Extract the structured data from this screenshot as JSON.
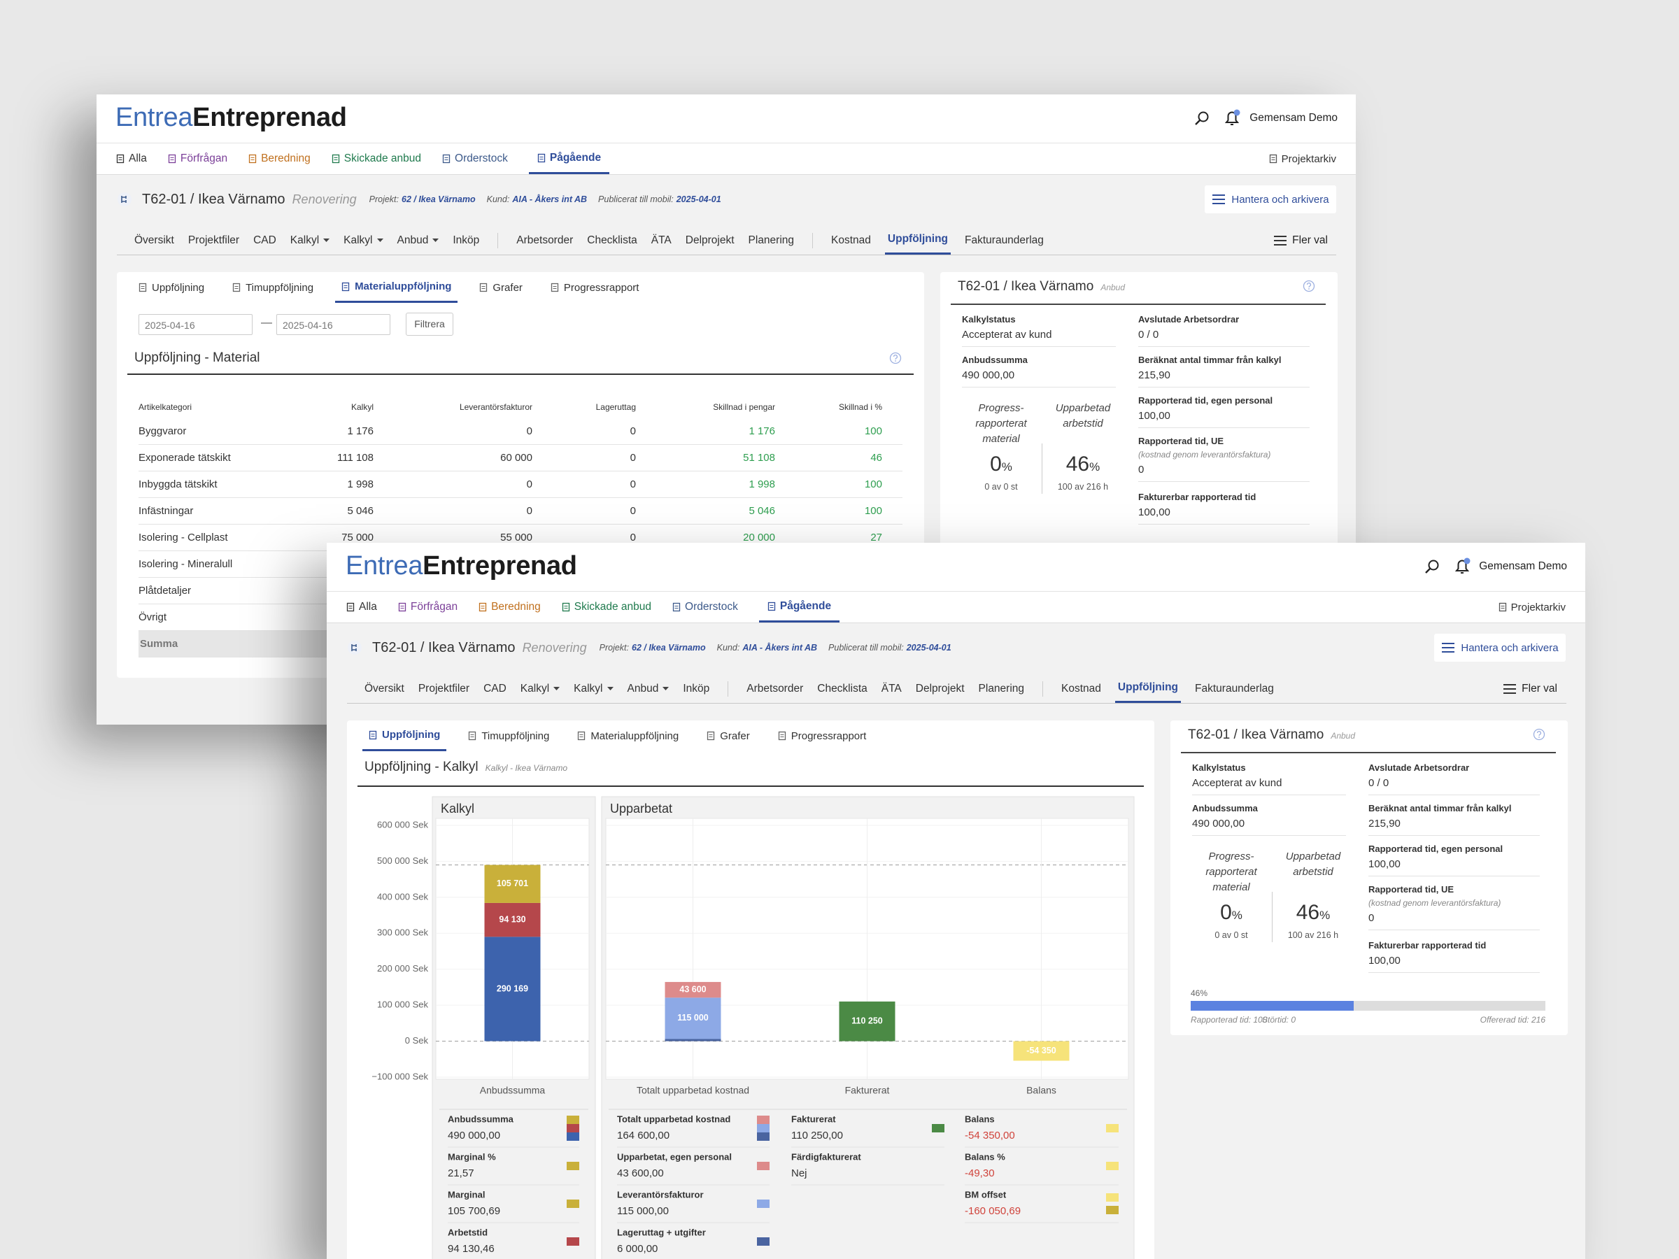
{
  "app": {
    "logo": [
      "Entrea",
      "Entreprenad"
    ],
    "user": "Gemensam Demo",
    "tabs": [
      {
        "label": "Alla",
        "color": "#333333"
      },
      {
        "label": "Förfrågan",
        "color": "#7b3f98"
      },
      {
        "label": "Beredning",
        "color": "#c0701e"
      },
      {
        "label": "Skickade anbud",
        "color": "#1f7a4d"
      },
      {
        "label": "Orderstock",
        "color": "#3d5a8a"
      },
      {
        "label": "Pågående",
        "color": "#2f4d9a",
        "active": true
      }
    ],
    "archive": "Projektarkiv",
    "project": {
      "title": "T62-01 / Ikea Värnamo",
      "status": "Renovering",
      "meta": [
        {
          "label": "Projekt:",
          "value": "62 / Ikea Värnamo"
        },
        {
          "label": "Kund:",
          "value": "AIA - Åkers int AB"
        },
        {
          "label": "Publicerat till mobil:",
          "value": "2025-04-01"
        }
      ],
      "manage": "Hantera och arkivera"
    },
    "nav": [
      [
        {
          "label": "Översikt"
        },
        {
          "label": "Projektfiler"
        },
        {
          "label": "CAD"
        },
        {
          "label": "Kalkyl",
          "dropdown": true
        },
        {
          "label": "Kalkyl",
          "dropdown": true
        },
        {
          "label": "Anbud",
          "dropdown": true
        },
        {
          "label": "Inköp"
        }
      ],
      [
        {
          "label": "Arbetsorder"
        },
        {
          "label": "Checklista"
        },
        {
          "label": "ÄTA"
        },
        {
          "label": "Delprojekt"
        },
        {
          "label": "Planering"
        }
      ],
      [
        {
          "label": "Kostnad"
        },
        {
          "label": "Uppföljning",
          "active": true
        },
        {
          "label": "Fakturaunderlag"
        }
      ]
    ],
    "more": "Fler val",
    "subtabs": [
      "Uppföljning",
      "Timuppföljning",
      "Materialuppföljning",
      "Grafer",
      "Progressrapport"
    ]
  },
  "side_panel": {
    "badge": "Anbud",
    "left": [
      {
        "label": "Kalkylstatus",
        "value": "Accepterat av kund"
      },
      {
        "label": "Anbudssumma",
        "value": "490 000,00"
      }
    ],
    "gauges": [
      {
        "caption": "Progress-rapporterat material",
        "value": 0,
        "unit": "%",
        "detail": "0 av 0 st"
      },
      {
        "caption": "Upparbetad arbetstid",
        "value": 46,
        "unit": "%",
        "detail": "100 av 216 h"
      }
    ],
    "right": [
      {
        "label": "Avslutade Arbetsordrar",
        "value": "0 / 0"
      },
      {
        "label": "Beräknat antal timmar från kalkyl",
        "value": "215,90"
      },
      {
        "label": "Rapporterad tid, egen personal",
        "value": "100,00"
      },
      {
        "label": "Rapporterad tid, UE",
        "note": "(kostnad genom leverantörsfaktura)",
        "value": "0"
      },
      {
        "label": "Fakturerbar rapporterad tid",
        "value": "100,00"
      }
    ],
    "progress": {
      "value": 46,
      "value_label": "46%",
      "xlim": [
        0,
        100
      ],
      "color": "#5b82e0"
    },
    "footer": [
      "Rapporterad tid: 100",
      "Störtid: 0",
      "Offererad tid: 216"
    ]
  },
  "material": {
    "date_from": "2025-04-16",
    "separator": "—",
    "date_to": "2025-04-16",
    "filter": "Filtrera",
    "title": "Uppföljning - Material",
    "columns": [
      "Artikelkategori",
      "Kalkyl",
      "Leverantörsfakturor",
      "Lageruttag",
      "Skillnad i pengar",
      "Skillnad i %"
    ],
    "rows": [
      [
        "Byggvaror",
        "1 176",
        "0",
        "0",
        "1 176",
        "100"
      ],
      [
        "Exponerade tätskikt",
        "111 108",
        "60 000",
        "0",
        "51 108",
        "46"
      ],
      [
        "Inbyggda tätskikt",
        "1 998",
        "0",
        "0",
        "1 998",
        "100"
      ],
      [
        "Infästningar",
        "5 046",
        "0",
        "0",
        "5 046",
        "100"
      ],
      [
        "Isolering - Cellplast",
        "75 000",
        "55 000",
        "0",
        "20 000",
        "27"
      ],
      [
        "Isolering - Mineralull"
      ],
      [
        "Plåtdetaljer"
      ],
      [
        "Övrigt"
      ],
      [
        "Summa"
      ]
    ]
  },
  "chart_data": {
    "type": "bar",
    "stacked": true,
    "title": "Uppföljning - Kalkyl",
    "subtitle": "Kalkyl - Ikea Värnamo",
    "ylim": [
      -100000,
      600000
    ],
    "yticks": [
      {
        "value": 600000,
        "label": "600 000 Sek"
      },
      {
        "value": 500000,
        "label": "500 000 Sek"
      },
      {
        "value": 400000,
        "label": "400 000 Sek"
      },
      {
        "value": 300000,
        "label": "300 000 Sek"
      },
      {
        "value": 200000,
        "label": "200 000 Sek"
      },
      {
        "value": 100000,
        "label": "100 000 Sek"
      },
      {
        "value": 0,
        "label": "0 Sek"
      },
      {
        "value": -100000,
        "label": "−100 000 Sek"
      }
    ],
    "reference_line": 490000,
    "panels": [
      {
        "title": "Kalkyl",
        "categories": [
          "Anbudssumma"
        ],
        "series": [
          {
            "color": "#3d63ad",
            "values": [
              290168.85
            ],
            "value_labels": [
              "290 169"
            ]
          },
          {
            "color": "#b5474b",
            "values": [
              94130.46
            ],
            "value_labels": [
              "94 130"
            ]
          },
          {
            "color": "#c9b03a",
            "values": [
              105700.69
            ],
            "value_labels": [
              "105 701"
            ]
          }
        ]
      },
      {
        "title": "Upparbetat",
        "categories": [
          "Totalt upparbetad kostnad",
          "Fakturerat",
          "Balans"
        ],
        "series": [
          {
            "color": "#4a64a0",
            "values": [
              6000,
              null,
              null
            ],
            "value_labels": [
              null,
              null,
              null
            ]
          },
          {
            "color": "#8da9e6",
            "values": [
              115000,
              null,
              null
            ],
            "value_labels": [
              "115 000",
              null,
              null
            ]
          },
          {
            "color": "#dd8b8b",
            "values": [
              43600,
              null,
              null
            ],
            "value_labels": [
              "43 600",
              null,
              null
            ]
          },
          {
            "color": "#4b8a45",
            "values": [
              null,
              110250,
              null
            ],
            "value_labels": [
              null,
              "110 250",
              null
            ]
          },
          {
            "color": "#f6e37a",
            "values": [
              null,
              null,
              -54350
            ],
            "value_labels": [
              null,
              null,
              "-54 350"
            ]
          }
        ]
      }
    ],
    "legend": [
      [
        {
          "label": "Anbudssumma",
          "value": "490 000,00",
          "colors": [
            "#c9b03a",
            "#b5474b",
            "#3d63ad"
          ]
        },
        {
          "label": "Marginal %",
          "value": "21,57",
          "colors": [
            "#c9b03a"
          ]
        },
        {
          "label": "Marginal",
          "value": "105 700,69",
          "colors": [
            "#c9b03a"
          ]
        },
        {
          "label": "Arbetstid",
          "value": "94 130,46",
          "colors": [
            "#b5474b"
          ]
        }
      ],
      [
        {
          "label": "Totalt upparbetad kostnad",
          "value": "164 600,00",
          "colors": [
            "#dd8b8b",
            "#8da9e6",
            "#4a64a0"
          ]
        },
        {
          "label": "Upparbetat, egen personal",
          "value": "43 600,00",
          "colors": [
            "#dd8b8b"
          ]
        },
        {
          "label": "Leverantörsfakturor",
          "value": "115 000,00",
          "colors": [
            "#8da9e6"
          ]
        },
        {
          "label": "Lageruttag + utgifter",
          "value": "6 000,00",
          "colors": [
            "#4a64a0"
          ]
        }
      ],
      [
        {
          "label": "Fakturerat",
          "value": "110 250,00",
          "colors": [
            "#4b8a45"
          ]
        },
        {
          "label": "Färdigfakturerat",
          "value": "Nej",
          "colors": []
        }
      ],
      [
        {
          "label": "Balans",
          "value": "-54 350,00",
          "colors": [
            "#f6e37a"
          ],
          "negative": true
        },
        {
          "label": "Balans %",
          "value": "-49,30",
          "colors": [
            "#f6e37a"
          ],
          "negative": true
        },
        {
          "label": "BM offset",
          "value": "-160 050,69",
          "colors": [
            "#f6e37a",
            "#c9b03a"
          ],
          "negative": true
        }
      ]
    ]
  }
}
